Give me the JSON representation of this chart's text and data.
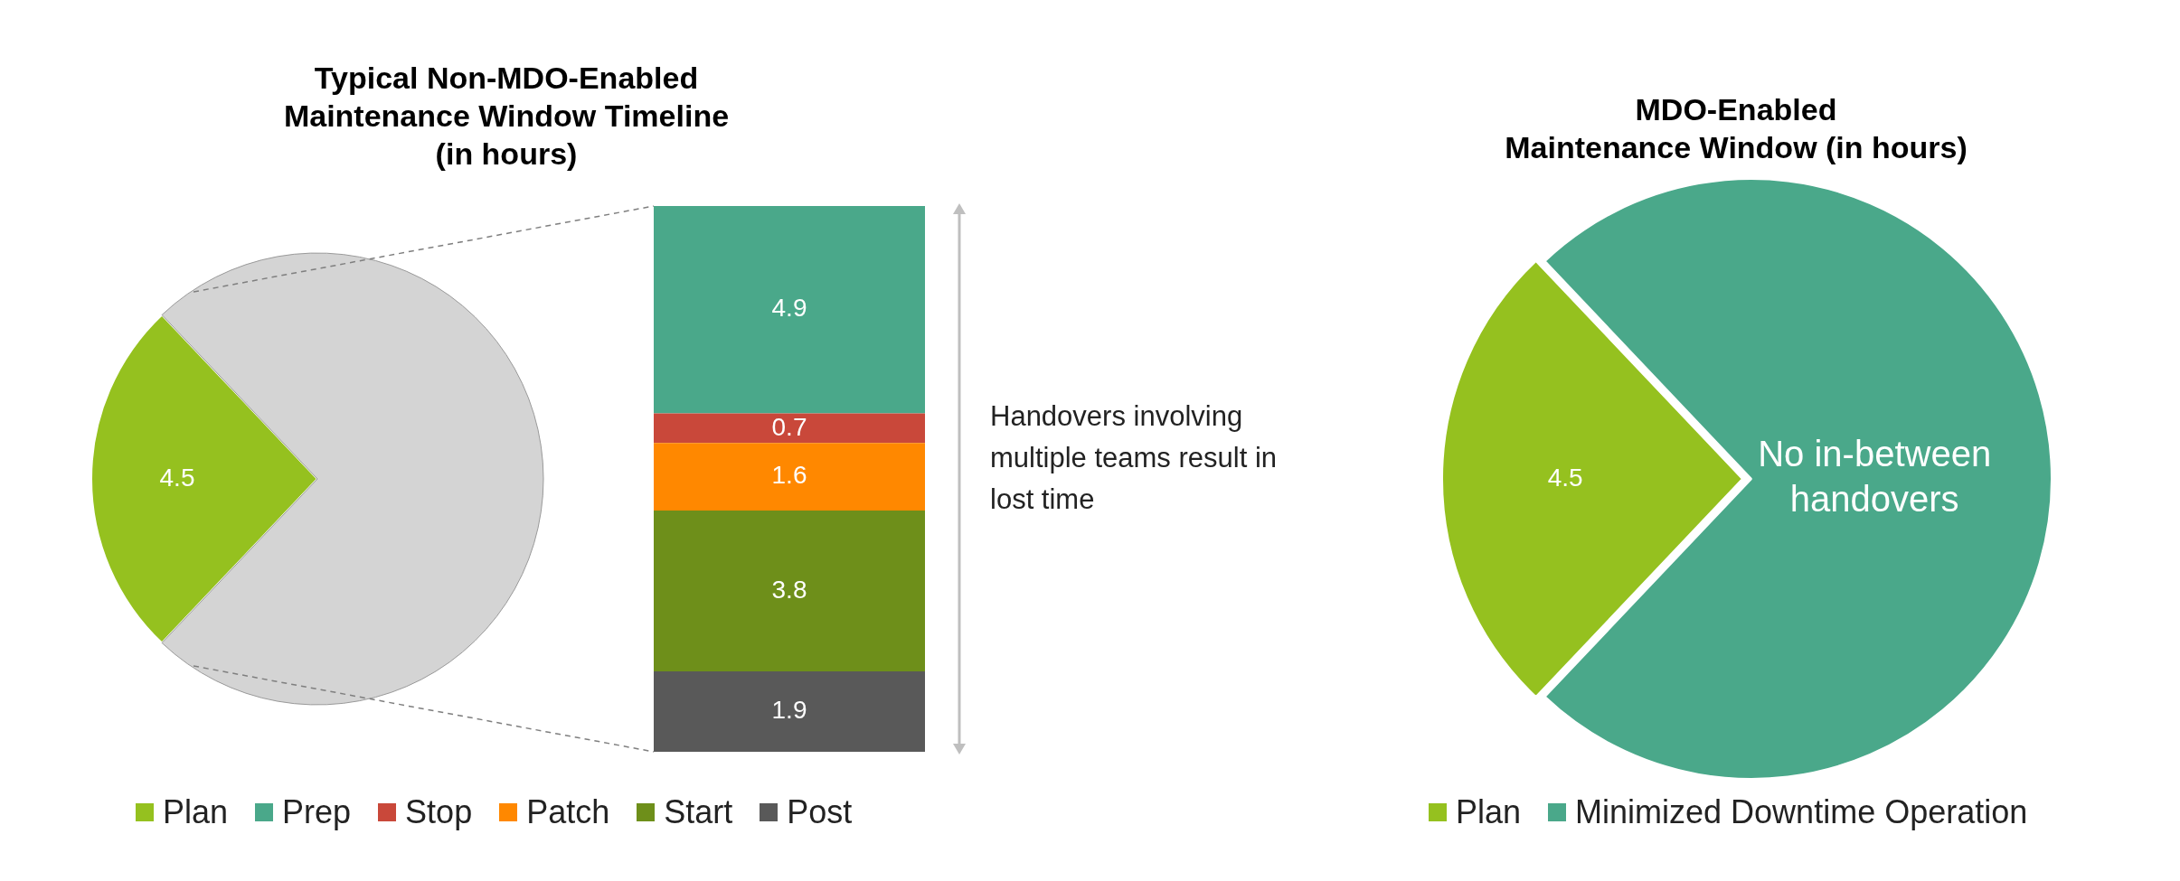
{
  "chart_data": [
    {
      "type": "pie",
      "title": "Typical Non-MDO-Enabled\nMaintenance Window Timeline\n(in hours)",
      "categories": [
        "Plan",
        null
      ],
      "values": [
        4.5,
        12.9
      ],
      "colors": [
        "#95c11f",
        "#d4d4d4"
      ],
      "value_labels": [
        "4.5",
        null
      ],
      "legend": "bottom"
    },
    {
      "type": "bar",
      "stacked": true,
      "categories": [
        null
      ],
      "ylim": [
        0,
        12.9
      ],
      "tick_labels": false,
      "data_labels": true,
      "legend": "bottom",
      "annotations": [
        "Handovers involving multiple teams result in lost time"
      ],
      "series": [
        {
          "name": "Post",
          "color": "#595959",
          "values": [
            1.9
          ]
        },
        {
          "name": "Start",
          "color": "#6e8f1a",
          "values": [
            3.8
          ]
        },
        {
          "name": "Patch",
          "color": "#ff8800",
          "values": [
            1.6
          ]
        },
        {
          "name": "Stop",
          "color": "#c9483a",
          "values": [
            0.7
          ]
        },
        {
          "name": "Prep",
          "color": "#4aa88a",
          "values": [
            4.9
          ]
        }
      ]
    },
    {
      "type": "pie",
      "title": "MDO-Enabled\nMaintenance Window (in hours)",
      "categories": [
        "Plan",
        "Minimized Downtime Operation"
      ],
      "values": [
        4.5,
        12.9
      ],
      "colors": [
        "#95c11f",
        "#4aa88a"
      ],
      "value_labels": [
        "4.5",
        null
      ],
      "legend": "bottom",
      "annotations": [
        "No in-between handovers"
      ]
    }
  ]
}
